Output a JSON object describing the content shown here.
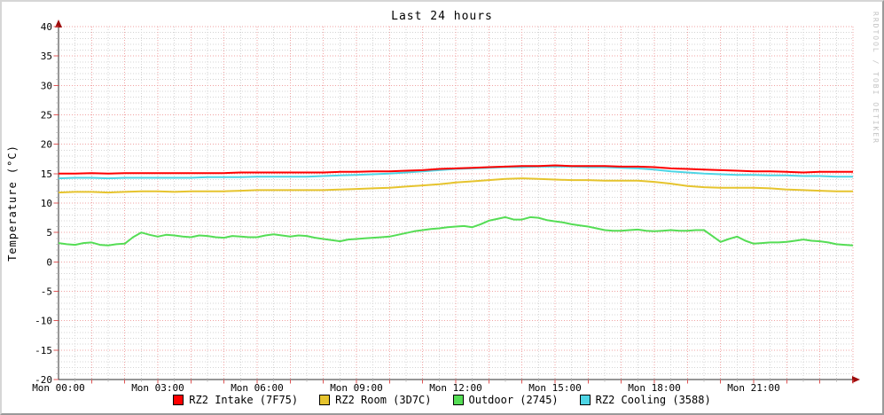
{
  "frame": {
    "watermark": "RRDTOOL / TOBI OETIKER"
  },
  "chart_data": {
    "type": "line",
    "title": "Last 24 hours",
    "ylabel": "Temperature (°C)",
    "ylim": [
      -20,
      40
    ],
    "y_tick_step": 5,
    "y_minor_step": 1,
    "y_tick_labels": [
      "40",
      "35",
      "30",
      "25",
      "20",
      "15",
      "10",
      "5",
      "0",
      "-5",
      "-10",
      "-15",
      "-20"
    ],
    "x_range_hours": [
      0,
      24
    ],
    "x_major_step_hours": 1,
    "x_minor_step_hours": 0.5,
    "x_axis_labels": [
      {
        "hour": 0,
        "text": "Mon 00:00"
      },
      {
        "hour": 3,
        "text": "Mon 03:00"
      },
      {
        "hour": 6,
        "text": "Mon 06:00"
      },
      {
        "hour": 9,
        "text": "Mon 09:00"
      },
      {
        "hour": 12,
        "text": "Mon 12:00"
      },
      {
        "hour": 15,
        "text": "Mon 15:00"
      },
      {
        "hour": 18,
        "text": "Mon 18:00"
      },
      {
        "hour": 21,
        "text": "Mon 21:00"
      }
    ],
    "grid": {
      "major_color": "#f0a3a3",
      "minor_color": "#d4d4d4",
      "tick_major_color": "#dd5555",
      "tick_minor_color": "#b9b9b9",
      "axis_color": "#2f2f2f",
      "arrow_color": "#9e0b0b",
      "background": "#ffffff"
    },
    "legend_position": "bottom-center",
    "series": [
      {
        "name": "RZ2 Intake (7F75)",
        "color": "#ff0000",
        "x_start": 0,
        "x_step_hours": 0.5,
        "values": [
          15.0,
          15.0,
          15.1,
          15.0,
          15.1,
          15.1,
          15.1,
          15.1,
          15.1,
          15.1,
          15.1,
          15.2,
          15.2,
          15.2,
          15.2,
          15.2,
          15.2,
          15.3,
          15.3,
          15.4,
          15.4,
          15.5,
          15.6,
          15.8,
          15.9,
          16.0,
          16.1,
          16.2,
          16.3,
          16.3,
          16.4,
          16.3,
          16.3,
          16.3,
          16.2,
          16.2,
          16.1,
          15.9,
          15.8,
          15.7,
          15.6,
          15.5,
          15.4,
          15.4,
          15.3,
          15.2,
          15.3,
          15.3,
          15.3
        ]
      },
      {
        "name": "RZ2 Room (3D7C)",
        "color": "#e6c42e",
        "x_start": 0,
        "x_step_hours": 0.5,
        "values": [
          11.8,
          11.9,
          11.9,
          11.8,
          11.9,
          12.0,
          12.0,
          11.9,
          12.0,
          12.0,
          12.0,
          12.1,
          12.2,
          12.2,
          12.2,
          12.2,
          12.2,
          12.3,
          12.4,
          12.5,
          12.6,
          12.8,
          13.0,
          13.2,
          13.5,
          13.7,
          13.9,
          14.1,
          14.2,
          14.1,
          14.0,
          13.9,
          13.9,
          13.8,
          13.8,
          13.8,
          13.6,
          13.3,
          12.9,
          12.7,
          12.6,
          12.6,
          12.6,
          12.5,
          12.3,
          12.2,
          12.1,
          12.0,
          12.0
        ]
      },
      {
        "name": "Outdoor (2745)",
        "color": "#55dd55",
        "x_start": 0,
        "x_step_hours": 0.25,
        "values": [
          3.2,
          3.0,
          2.9,
          3.2,
          3.3,
          2.9,
          2.8,
          3.0,
          3.1,
          4.2,
          5.0,
          4.6,
          4.3,
          4.6,
          4.5,
          4.3,
          4.2,
          4.5,
          4.4,
          4.2,
          4.1,
          4.4,
          4.3,
          4.2,
          4.2,
          4.5,
          4.7,
          4.5,
          4.3,
          4.5,
          4.4,
          4.1,
          3.9,
          3.7,
          3.5,
          3.8,
          3.9,
          4.0,
          4.1,
          4.2,
          4.3,
          4.6,
          4.9,
          5.2,
          5.4,
          5.6,
          5.7,
          5.9,
          6.0,
          6.1,
          5.9,
          6.4,
          7.0,
          7.3,
          7.6,
          7.2,
          7.2,
          7.6,
          7.5,
          7.1,
          6.9,
          6.7,
          6.4,
          6.2,
          6.0,
          5.7,
          5.4,
          5.3,
          5.3,
          5.4,
          5.5,
          5.3,
          5.2,
          5.3,
          5.4,
          5.3,
          5.3,
          5.4,
          5.4,
          4.4,
          3.4,
          3.9,
          4.3,
          3.6,
          3.1,
          3.2,
          3.3,
          3.3,
          3.4,
          3.6,
          3.8,
          3.6,
          3.5,
          3.3,
          3.0,
          2.9,
          2.8
        ]
      },
      {
        "name": "RZ2 Cooling (3588)",
        "color": "#4ed5e5",
        "x_start": 0,
        "x_step_hours": 0.5,
        "values": [
          14.2,
          14.3,
          14.3,
          14.2,
          14.3,
          14.3,
          14.3,
          14.3,
          14.3,
          14.4,
          14.4,
          14.4,
          14.5,
          14.5,
          14.5,
          14.5,
          14.6,
          14.7,
          14.8,
          14.9,
          15.0,
          15.2,
          15.4,
          15.6,
          15.8,
          15.9,
          16.0,
          16.1,
          16.1,
          16.2,
          16.2,
          16.2,
          16.1,
          16.1,
          16.0,
          15.9,
          15.7,
          15.4,
          15.2,
          15.0,
          14.9,
          14.8,
          14.8,
          14.7,
          14.7,
          14.6,
          14.6,
          14.5,
          14.5
        ]
      }
    ]
  }
}
